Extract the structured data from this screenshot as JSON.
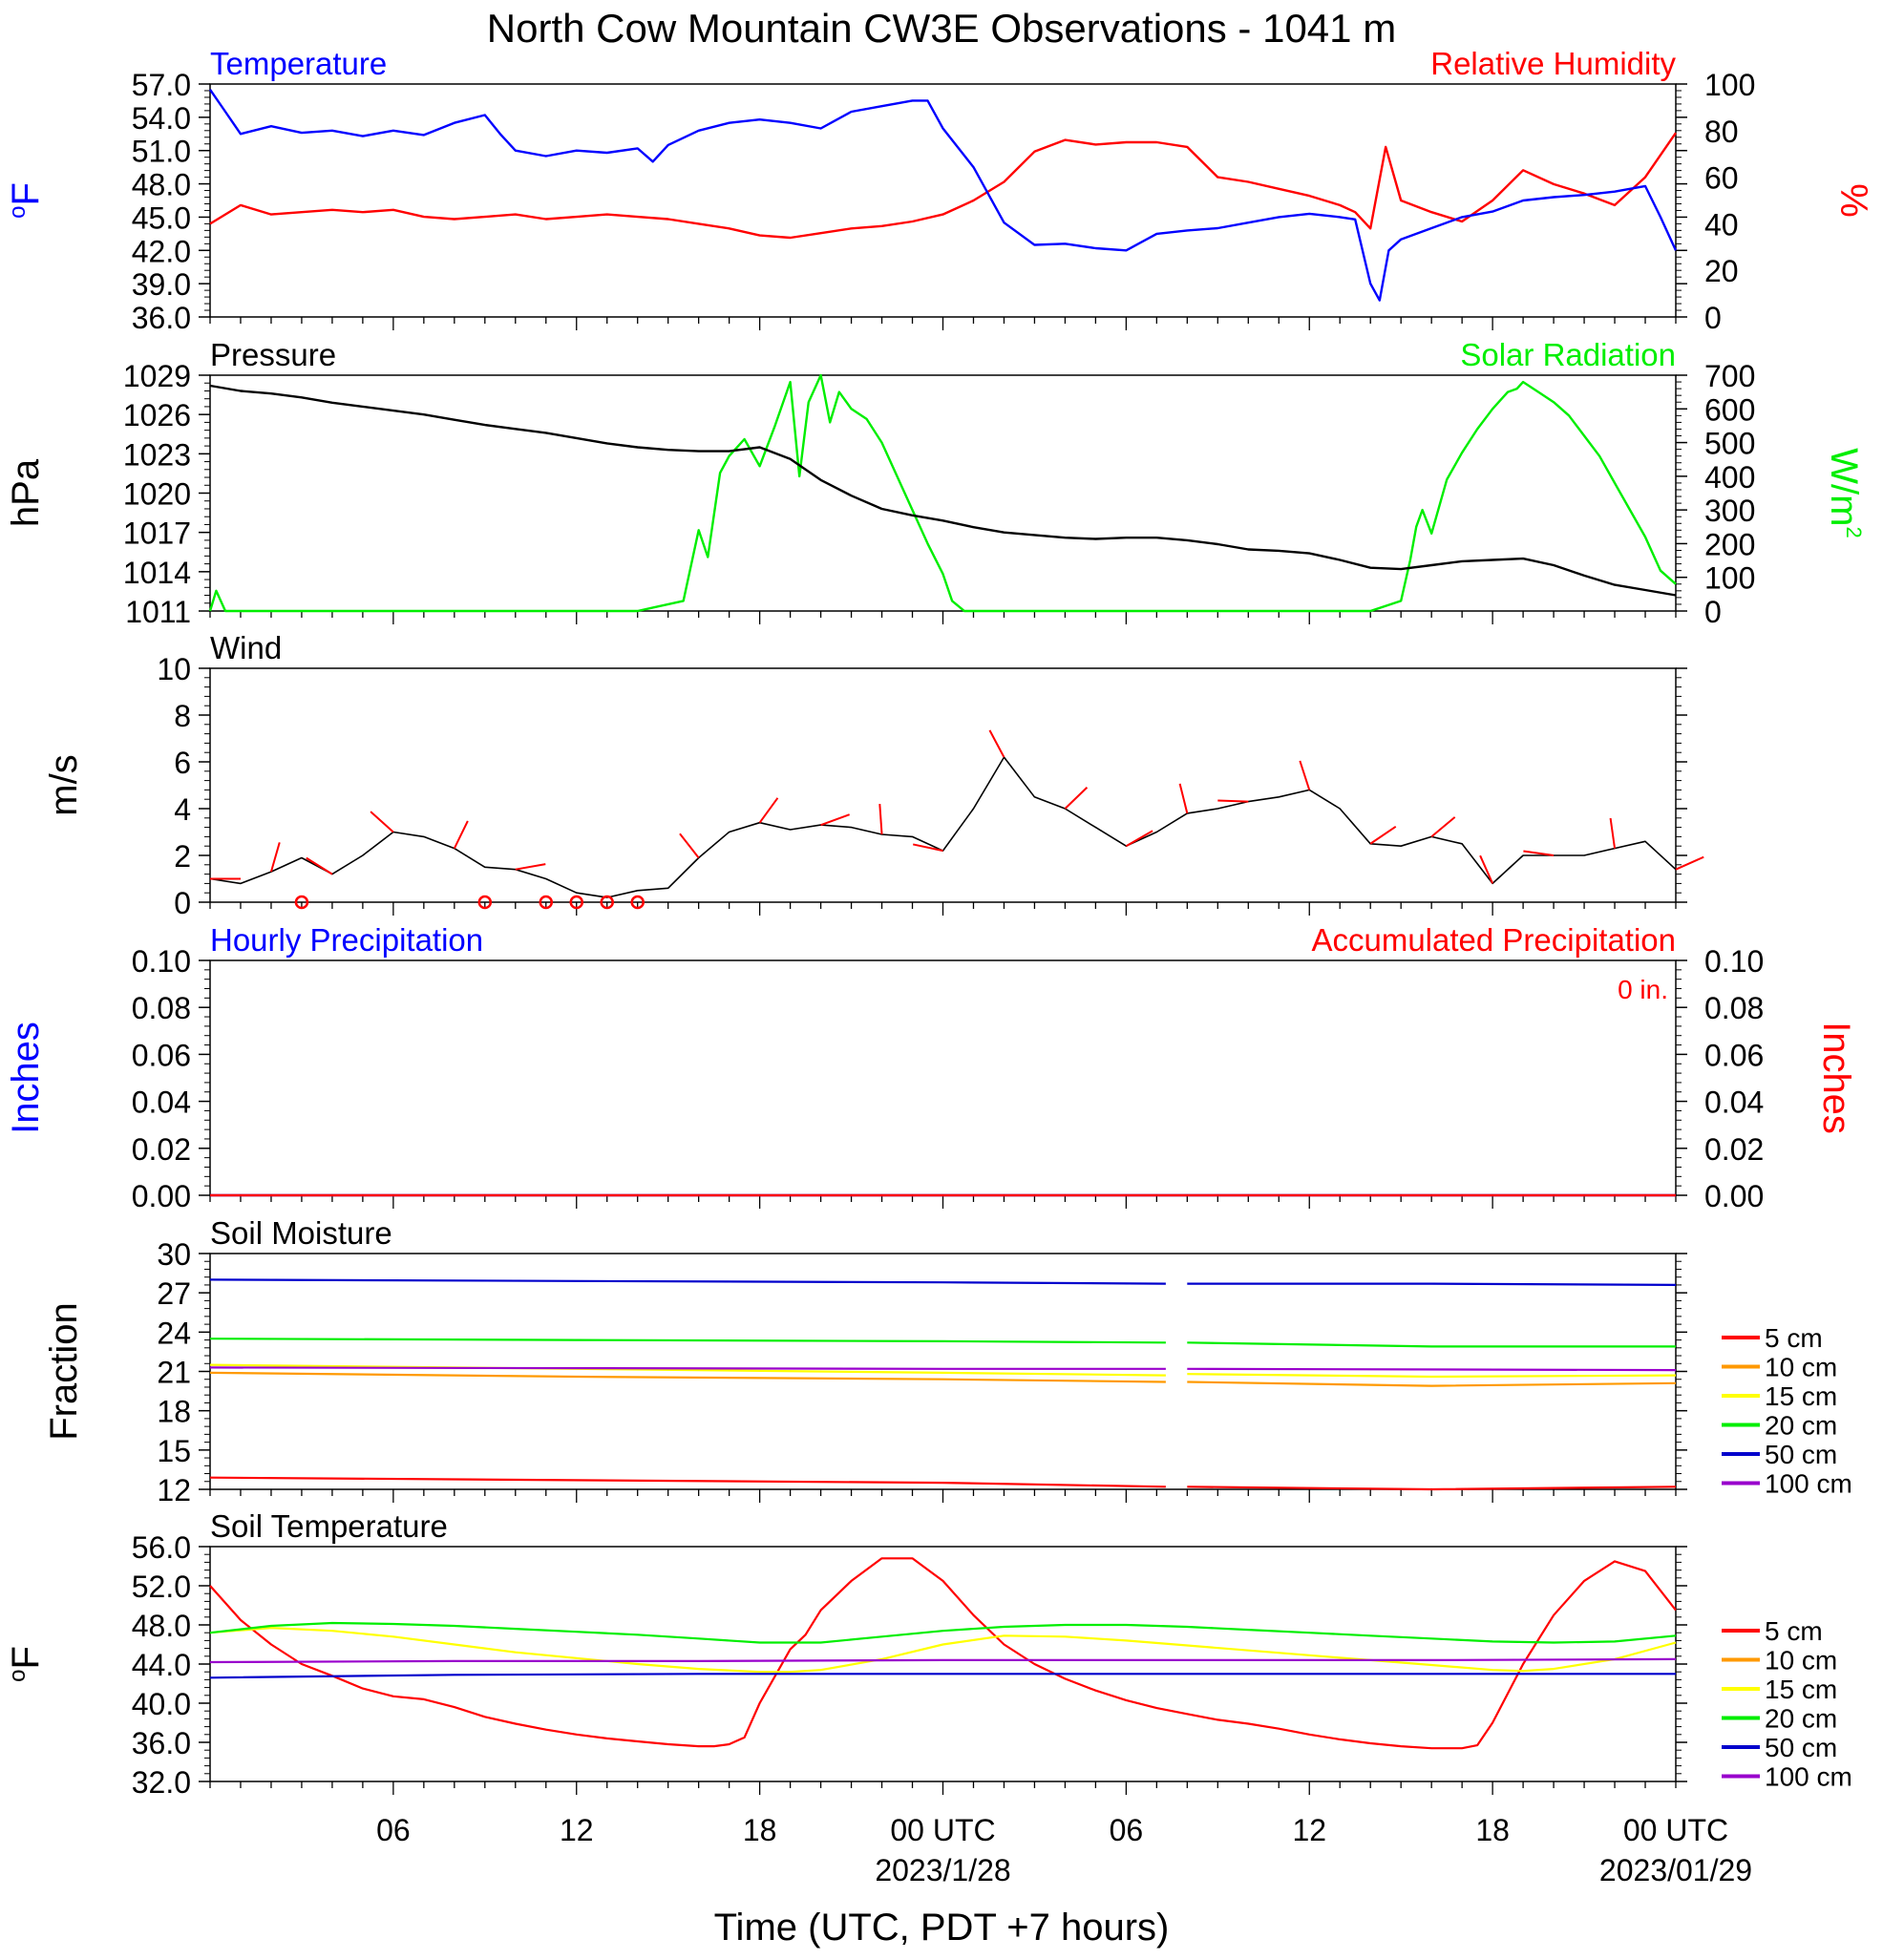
{
  "title": "North Cow Mountain CW3E Observations - 1041 m",
  "x_axis": {
    "title": "Time (UTC, PDT +7 hours)",
    "tick_labels": [
      "06",
      "12",
      "18",
      "00 UTC",
      "06",
      "12",
      "18",
      "00 UTC"
    ],
    "date_labels": [
      "2023/1/28",
      "2023/01/29"
    ]
  },
  "legend": {
    "items": [
      "5 cm",
      "10 cm",
      "15 cm",
      "20 cm",
      "50 cm",
      "100 cm"
    ],
    "colors": [
      "#ff0000",
      "#ff9900",
      "#ffff00",
      "#00ee00",
      "#0000cc",
      "#9900cc"
    ]
  },
  "colors": {
    "temperature": "#0000ff",
    "humidity": "#ff0000",
    "pressure": "#000000",
    "solar": "#00ee00",
    "wind": "#000000",
    "barb": "#ff0000"
  },
  "chart_data": [
    {
      "type": "line",
      "title_left": "Temperature",
      "title_right": "Relative Humidity",
      "ylabel_left": "°F",
      "ylabel_right": "%",
      "ylim_left": [
        36,
        57
      ],
      "ylim_right": [
        0,
        100
      ],
      "yticks_left": [
        "57.0",
        "54.0",
        "51.0",
        "48.0",
        "45.0",
        "42.0",
        "39.0",
        "36.0"
      ],
      "yticks_right": [
        "100",
        "80",
        "60",
        "40",
        "20",
        "0"
      ],
      "series": [
        {
          "name": "Temperature",
          "axis": "left",
          "x": [
            0,
            0.5,
            1,
            2,
            3,
            4,
            5,
            6,
            7,
            8,
            9,
            9.5,
            10,
            11,
            12,
            13,
            14,
            14.5,
            15,
            16,
            17,
            18,
            19,
            20,
            21,
            22,
            23,
            23.5,
            24,
            25,
            26,
            27,
            28,
            29,
            30,
            31,
            32,
            33,
            34,
            35,
            36,
            37,
            37.5,
            38,
            38.3,
            38.6,
            39,
            40,
            41,
            42,
            43,
            44,
            45,
            46,
            47,
            47.5,
            48
          ],
          "values": [
            56.5,
            54.5,
            52.5,
            53.2,
            52.6,
            52.8,
            52.3,
            52.8,
            52.4,
            53.5,
            54.2,
            52.5,
            51.0,
            50.5,
            51.0,
            50.8,
            51.2,
            50.0,
            51.5,
            52.8,
            53.5,
            53.8,
            53.5,
            53.0,
            54.5,
            55.0,
            55.5,
            55.5,
            53.0,
            49.5,
            44.5,
            42.5,
            42.6,
            42.2,
            42.0,
            43.5,
            43.8,
            44.0,
            44.5,
            45.0,
            45.3,
            45.0,
            44.8,
            39.0,
            37.5,
            42.0,
            43.0,
            44.0,
            45.0,
            45.5,
            46.5,
            46.8,
            47.0,
            47.3,
            47.8,
            45.0,
            42.0
          ]
        },
        {
          "name": "Relative Humidity",
          "axis": "right",
          "x": [
            0,
            1,
            2,
            3,
            4,
            5,
            6,
            7,
            8,
            9,
            10,
            11,
            12,
            13,
            14,
            15,
            16,
            17,
            18,
            19,
            20,
            21,
            22,
            23,
            24,
            25,
            26,
            27,
            28,
            29,
            30,
            31,
            32,
            33,
            34,
            35,
            36,
            37,
            37.5,
            38,
            38.5,
            39,
            40,
            41,
            42,
            43,
            44,
            45,
            46,
            47,
            48
          ],
          "values": [
            40,
            48,
            44,
            45,
            46,
            45,
            46,
            43,
            42,
            43,
            44,
            42,
            43,
            44,
            43,
            42,
            40,
            38,
            35,
            34,
            36,
            38,
            39,
            41,
            44,
            50,
            58,
            71,
            76,
            74,
            75,
            75,
            73,
            60,
            58,
            55,
            52,
            48,
            45,
            38,
            73,
            50,
            45,
            41,
            50,
            63,
            57,
            53,
            48,
            60,
            79
          ]
        }
      ]
    },
    {
      "type": "line",
      "title_left": "Pressure",
      "title_right": "Solar Radiation",
      "ylabel_left": "hPa",
      "ylabel_right": "W/m",
      "ylabel_right_superscript": "2",
      "ylim_left": [
        1011,
        1029
      ],
      "ylim_right": [
        0,
        700
      ],
      "yticks_left": [
        "1029",
        "1026",
        "1023",
        "1020",
        "1017",
        "1014",
        "1011"
      ],
      "yticks_right": [
        "700",
        "600",
        "500",
        "400",
        "300",
        "200",
        "100",
        "0"
      ],
      "series": [
        {
          "name": "Pressure",
          "axis": "left",
          "x": [
            0,
            1,
            2,
            3,
            4,
            5,
            6,
            7,
            8,
            9,
            10,
            11,
            12,
            13,
            14,
            15,
            16,
            17,
            18,
            19,
            20,
            21,
            22,
            23,
            24,
            25,
            26,
            27,
            28,
            29,
            30,
            31,
            32,
            33,
            34,
            35,
            36,
            37,
            38,
            39,
            40,
            41,
            42,
            43,
            44,
            45,
            46,
            47,
            48
          ],
          "values": [
            1028.2,
            1027.8,
            1027.6,
            1027.3,
            1026.9,
            1026.6,
            1026.3,
            1026.0,
            1025.6,
            1025.2,
            1024.9,
            1024.6,
            1024.2,
            1023.8,
            1023.5,
            1023.3,
            1023.2,
            1023.2,
            1023.5,
            1022.6,
            1021.0,
            1019.8,
            1018.8,
            1018.3,
            1017.9,
            1017.4,
            1017.0,
            1016.8,
            1016.6,
            1016.5,
            1016.6,
            1016.6,
            1016.4,
            1016.1,
            1015.7,
            1015.6,
            1015.4,
            1014.9,
            1014.3,
            1014.2,
            1014.5,
            1014.8,
            1014.9,
            1015.0,
            1014.5,
            1013.7,
            1013.0,
            1012.6,
            1012.2
          ]
        },
        {
          "name": "Solar Radiation",
          "axis": "right",
          "x": [
            0,
            0.2,
            0.5,
            14,
            15.5,
            16,
            16.3,
            16.7,
            17,
            17.5,
            18,
            18.5,
            19,
            19.3,
            19.6,
            20,
            20.3,
            20.6,
            21,
            21.5,
            22,
            22.5,
            23,
            23.5,
            24,
            24.3,
            24.7,
            25,
            38,
            39,
            39.3,
            39.5,
            39.7,
            40,
            40.5,
            41,
            41.5,
            42,
            42.5,
            42.8,
            43,
            43.5,
            44,
            44.5,
            45,
            45.5,
            46,
            46.5,
            47,
            47.5,
            48
          ],
          "values": [
            0,
            60,
            0,
            0,
            30,
            240,
            160,
            410,
            460,
            510,
            430,
            550,
            680,
            400,
            620,
            700,
            560,
            650,
            600,
            570,
            500,
            400,
            300,
            200,
            110,
            30,
            0,
            0,
            0,
            30,
            150,
            250,
            300,
            230,
            390,
            470,
            540,
            600,
            650,
            660,
            680,
            650,
            620,
            580,
            520,
            460,
            380,
            300,
            220,
            120,
            80
          ]
        }
      ]
    },
    {
      "type": "line",
      "title": "Wind",
      "ylabel": "m/s",
      "ylim": [
        0,
        10
      ],
      "yticks": [
        "10",
        "8",
        "6",
        "4",
        "2",
        "0"
      ],
      "series": [
        {
          "name": "Wind",
          "x": [
            0,
            1,
            2,
            3,
            4,
            5,
            6,
            7,
            8,
            9,
            10,
            11,
            12,
            13,
            14,
            15,
            16,
            17,
            18,
            19,
            20,
            21,
            22,
            23,
            24,
            25,
            26,
            27,
            28,
            29,
            30,
            31,
            32,
            33,
            34,
            35,
            36,
            37,
            38,
            39,
            40,
            41,
            42,
            43,
            44,
            45,
            46,
            47,
            48
          ],
          "values": [
            1.0,
            0.8,
            1.3,
            1.9,
            1.2,
            2.0,
            3.0,
            2.8,
            2.3,
            1.5,
            1.4,
            1.0,
            0.4,
            0.2,
            0.5,
            0.6,
            1.9,
            3.0,
            3.4,
            3.1,
            3.3,
            3.2,
            2.9,
            2.8,
            2.2,
            4.0,
            6.2,
            4.5,
            4.0,
            3.2,
            2.4,
            3.0,
            3.8,
            4.0,
            4.3,
            4.5,
            4.8,
            4.0,
            2.5,
            2.4,
            2.8,
            2.5,
            0.8,
            2.0,
            2.0,
            2.0,
            2.3,
            2.6,
            1.4
          ]
        }
      ],
      "calm_points_x": [
        3,
        9,
        11,
        12,
        13,
        14
      ]
    },
    {
      "type": "line",
      "title_left": "Hourly Precipitation",
      "title_right": "Accumulated Precipitation",
      "annotation": "0 in.",
      "ylabel_left": "Inches",
      "ylabel_right": "Inches",
      "ylim_left": [
        0,
        0.1
      ],
      "ylim_right": [
        0,
        0.1
      ],
      "yticks_left": [
        "0.10",
        "0.08",
        "0.06",
        "0.04",
        "0.02",
        "0.00"
      ],
      "yticks_right": [
        "0.10",
        "0.08",
        "0.06",
        "0.04",
        "0.02",
        "0.00"
      ],
      "series": [
        {
          "name": "Hourly Precipitation",
          "x": [
            0,
            48
          ],
          "values": [
            0,
            0
          ]
        },
        {
          "name": "Accumulated Precipitation",
          "x": [
            0,
            48
          ],
          "values": [
            0,
            0
          ]
        }
      ]
    },
    {
      "type": "line",
      "title": "Soil Moisture",
      "ylabel": "Fraction",
      "ylim": [
        12,
        30
      ],
      "yticks": [
        "30",
        "27",
        "24",
        "21",
        "18",
        "15",
        "12"
      ],
      "gap_x": [
        31.3,
        32.0
      ],
      "series": [
        {
          "name": "5 cm",
          "x": [
            0,
            24,
            31.3,
            32,
            40,
            48
          ],
          "values": [
            12.9,
            12.5,
            12.2,
            12.2,
            12.0,
            12.2
          ]
        },
        {
          "name": "10 cm",
          "x": [
            0,
            12,
            24,
            31.3,
            32,
            40,
            48
          ],
          "values": [
            20.9,
            20.6,
            20.4,
            20.2,
            20.2,
            19.9,
            20.1
          ]
        },
        {
          "name": "15 cm",
          "x": [
            0,
            12,
            24,
            31.3,
            32,
            40,
            48
          ],
          "values": [
            21.5,
            21.2,
            20.9,
            20.7,
            20.8,
            20.6,
            20.7
          ]
        },
        {
          "name": "20 cm",
          "x": [
            0,
            12,
            24,
            31.3,
            32,
            40,
            48
          ],
          "values": [
            23.5,
            23.4,
            23.3,
            23.2,
            23.2,
            22.9,
            22.9
          ]
        },
        {
          "name": "50 cm",
          "x": [
            0,
            12,
            24,
            31.3,
            32,
            40,
            48
          ],
          "values": [
            28.0,
            27.9,
            27.8,
            27.7,
            27.7,
            27.7,
            27.6
          ]
        },
        {
          "name": "100 cm",
          "x": [
            0,
            24,
            31.3,
            32,
            48
          ],
          "values": [
            21.3,
            21.2,
            21.2,
            21.2,
            21.1
          ]
        }
      ]
    },
    {
      "type": "line",
      "title": "Soil Temperature",
      "ylabel": "°F",
      "ylim": [
        32,
        56
      ],
      "yticks": [
        "56.0",
        "52.0",
        "48.0",
        "44.0",
        "40.0",
        "36.0",
        "32.0"
      ],
      "series": [
        {
          "name": "5 cm",
          "x": [
            0,
            1,
            2,
            3,
            4,
            5,
            6,
            7,
            8,
            9,
            10,
            11,
            12,
            13,
            14,
            15,
            16,
            16.5,
            17,
            17.5,
            18,
            19,
            19.5,
            20,
            21,
            22,
            23,
            24,
            25,
            26,
            27,
            28,
            29,
            30,
            31,
            32,
            33,
            34,
            35,
            36,
            37,
            38,
            39,
            40,
            41,
            41.5,
            42,
            43,
            44,
            45,
            46,
            47,
            48
          ],
          "values": [
            52.0,
            48.5,
            46.0,
            44.0,
            42.8,
            41.5,
            40.7,
            40.4,
            39.6,
            38.6,
            37.9,
            37.3,
            36.8,
            36.4,
            36.1,
            35.8,
            35.6,
            35.6,
            35.8,
            36.5,
            40.0,
            45.5,
            47.0,
            49.5,
            52.5,
            54.8,
            54.8,
            52.5,
            49.0,
            46.0,
            44.0,
            42.5,
            41.3,
            40.3,
            39.5,
            38.9,
            38.3,
            37.9,
            37.4,
            36.8,
            36.3,
            35.9,
            35.6,
            35.4,
            35.4,
            35.7,
            38.0,
            44.0,
            49.0,
            52.5,
            54.5,
            53.5,
            49.5
          ]
        },
        {
          "name": "15 cm",
          "x": [
            0,
            2,
            4,
            6,
            8,
            10,
            12,
            14,
            16,
            18,
            19,
            20,
            22,
            24,
            26,
            28,
            30,
            32,
            34,
            36,
            38,
            40,
            42,
            43,
            44,
            46,
            48
          ],
          "values": [
            47.2,
            47.7,
            47.4,
            46.8,
            46.0,
            45.2,
            44.6,
            44.0,
            43.5,
            43.2,
            43.2,
            43.4,
            44.5,
            46.0,
            46.9,
            46.8,
            46.4,
            45.9,
            45.4,
            44.9,
            44.4,
            43.9,
            43.4,
            43.3,
            43.5,
            44.5,
            46.2
          ]
        },
        {
          "name": "20 cm",
          "x": [
            0,
            2,
            4,
            6,
            8,
            10,
            12,
            14,
            16,
            18,
            20,
            22,
            24,
            26,
            28,
            30,
            32,
            34,
            36,
            38,
            40,
            42,
            44,
            46,
            48
          ],
          "values": [
            47.2,
            47.9,
            48.2,
            48.1,
            47.9,
            47.6,
            47.3,
            47.0,
            46.6,
            46.2,
            46.2,
            46.8,
            47.4,
            47.8,
            48.0,
            48.0,
            47.8,
            47.5,
            47.2,
            46.9,
            46.6,
            46.3,
            46.2,
            46.3,
            46.9
          ]
        },
        {
          "name": "50 cm",
          "x": [
            0,
            8,
            16,
            24,
            32,
            40,
            48
          ],
          "values": [
            42.6,
            42.9,
            43.0,
            43.0,
            43.0,
            43.0,
            43.0
          ]
        },
        {
          "name": "100 cm",
          "x": [
            0,
            8,
            16,
            24,
            32,
            40,
            48
          ],
          "values": [
            44.2,
            44.3,
            44.3,
            44.4,
            44.4,
            44.4,
            44.5
          ]
        }
      ]
    }
  ]
}
